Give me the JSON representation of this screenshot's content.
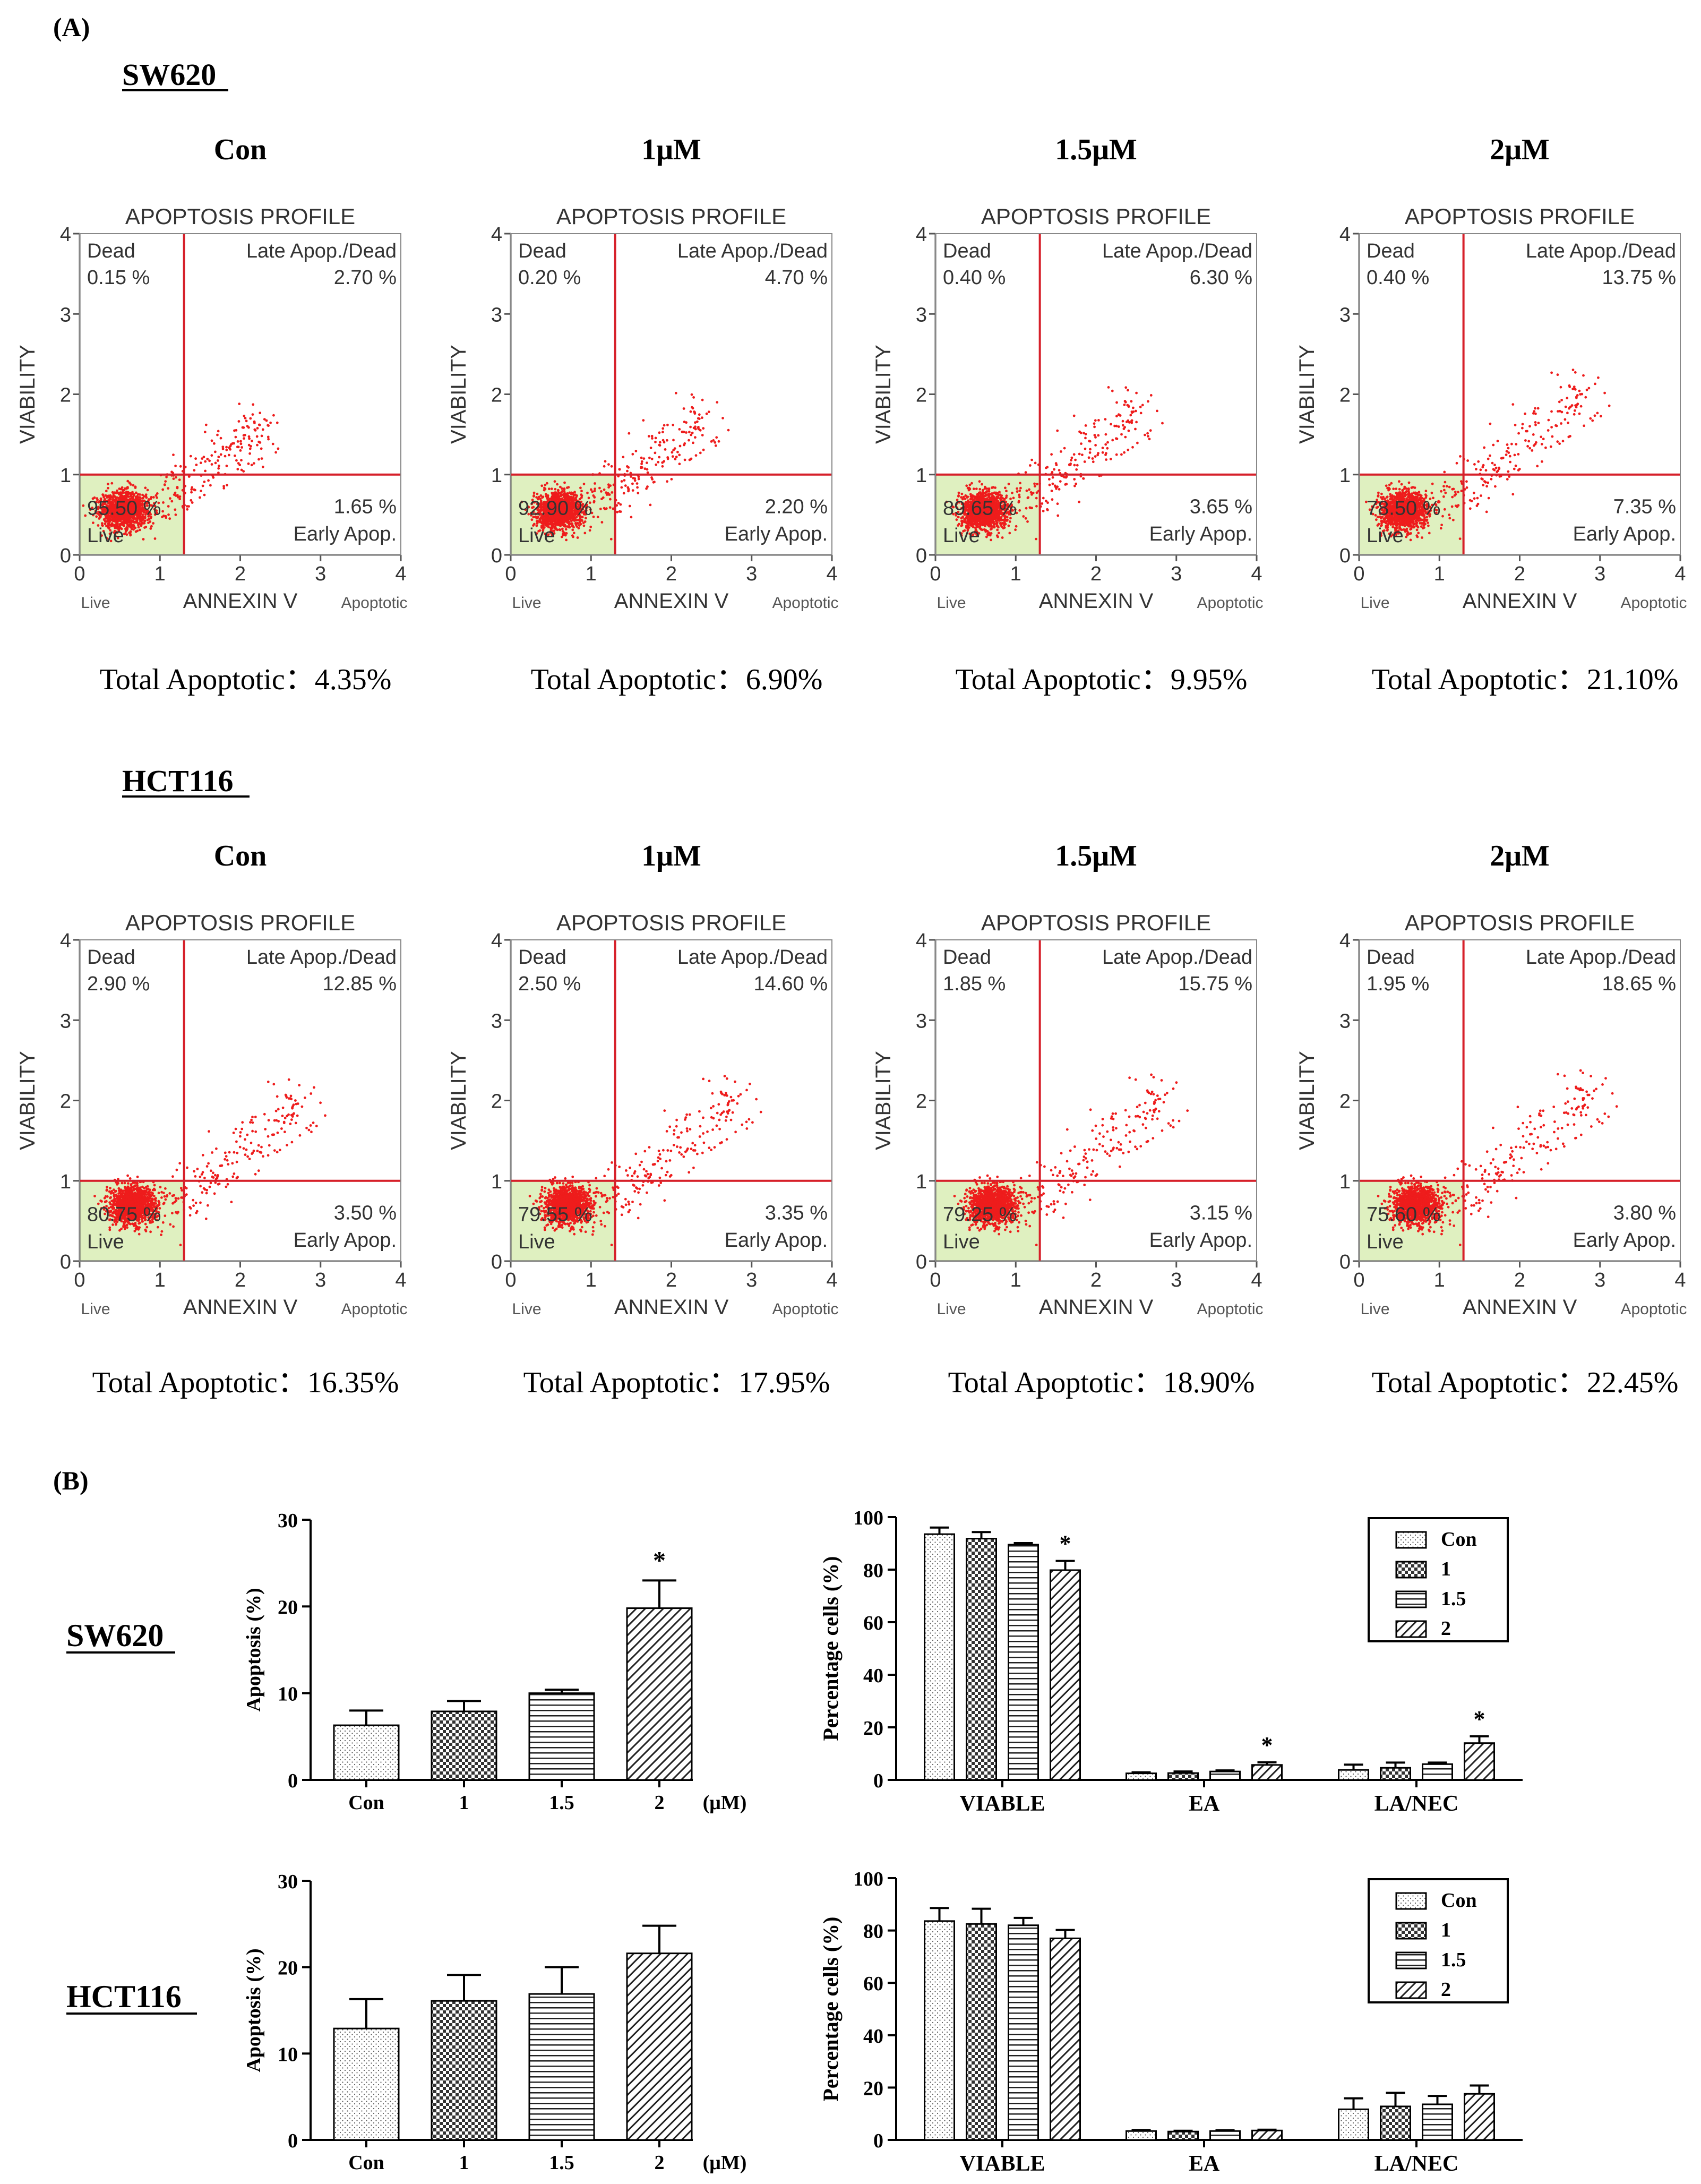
{
  "panel_a_label": "(A)",
  "panel_b_label": "(B)",
  "conc_labels": [
    "Con",
    "1μM",
    "1.5μM",
    "2μM"
  ],
  "total_prefix": "Total Apoptotic：",
  "colors": {
    "scatter_red": "#ee1c1c",
    "quadrant_line": "#d6202a",
    "live_box": "#dff0c0",
    "title_gray": "#404040"
  },
  "chart_data": {
    "flow": [
      {
        "cell_line": "SW620",
        "panels": [
          {
            "condition": "Con",
            "title": "APOPTOSIS PROFILE",
            "ylabel": "VIABILITY",
            "xlabel": "ANNEXIN V",
            "x_left": "Live",
            "x_right": "Apoptotic",
            "dead_label": "Dead",
            "dead": "0.15 %",
            "late_label": "Late Apop./Dead",
            "late": "2.70 %",
            "live": "95.50 %",
            "live_label": "Live",
            "early": "1.65 %",
            "early_label": "Early Apop.",
            "total": "4.35%",
            "spread": 0.15,
            "cluster": [
              0.55,
              0.55
            ],
            "xlim": [
              0,
              4
            ],
            "ylim": [
              0,
              4
            ]
          },
          {
            "condition": "1μM",
            "title": "APOPTOSIS PROFILE",
            "ylabel": "VIABILITY",
            "xlabel": "ANNEXIN V",
            "x_left": "Live",
            "x_right": "Apoptotic",
            "dead_label": "Dead",
            "dead": "0.20 %",
            "late_label": "Late Apop./Dead",
            "late": "4.70 %",
            "live": "92.90 %",
            "live_label": "Live",
            "early": "2.20 %",
            "early_label": "Early Apop.",
            "total": "6.90%",
            "spread": 0.25,
            "cluster": [
              0.6,
              0.55
            ],
            "xlim": [
              0,
              4
            ],
            "ylim": [
              0,
              4
            ]
          },
          {
            "condition": "1.5μM",
            "title": "APOPTOSIS PROFILE",
            "ylabel": "VIABILITY",
            "xlabel": "ANNEXIN V",
            "x_left": "Live",
            "x_right": "Apoptotic",
            "dead_label": "Dead",
            "dead": "0.40 %",
            "late_label": "Late Apop./Dead",
            "late": "6.30 %",
            "live": "89.65 %",
            "live_label": "Live",
            "early": "3.65 %",
            "early_label": "Early Apop.",
            "total": "9.95%",
            "spread": 0.35,
            "cluster": [
              0.6,
              0.55
            ],
            "xlim": [
              0,
              4
            ],
            "ylim": [
              0,
              4
            ]
          },
          {
            "condition": "2μM",
            "title": "APOPTOSIS PROFILE",
            "ylabel": "VIABILITY",
            "xlabel": "ANNEXIN V",
            "x_left": "Live",
            "x_right": "Apoptotic",
            "dead_label": "Dead",
            "dead": "0.40 %",
            "late_label": "Late Apop./Dead",
            "late": "13.75 %",
            "live": "78.50 %",
            "live_label": "Live",
            "early": "7.35 %",
            "early_label": "Early Apop.",
            "total": "21.10%",
            "spread": 0.6,
            "cluster": [
              0.55,
              0.55
            ],
            "xlim": [
              0,
              4
            ],
            "ylim": [
              0,
              4
            ]
          }
        ]
      },
      {
        "cell_line": "HCT116",
        "panels": [
          {
            "condition": "Con",
            "title": "APOPTOSIS PROFILE",
            "ylabel": "VIABILITY",
            "xlabel": "ANNEXIN V",
            "x_left": "Live",
            "x_right": "Apoptotic",
            "dead_label": "Dead",
            "dead": "2.90 %",
            "late_label": "Late Apop./Dead",
            "late": "12.85 %",
            "live": "80.75 %",
            "live_label": "Live",
            "early": "3.50 %",
            "early_label": "Early Apop.",
            "total": "16.35%",
            "spread": 0.55,
            "cluster": [
              0.65,
              0.7
            ],
            "xlim": [
              0,
              4
            ],
            "ylim": [
              0,
              4
            ]
          },
          {
            "condition": "1μM",
            "title": "APOPTOSIS PROFILE",
            "ylabel": "VIABILITY",
            "xlabel": "ANNEXIN V",
            "x_left": "Live",
            "x_right": "Apoptotic",
            "dead_label": "Dead",
            "dead": "2.50 %",
            "late_label": "Late Apop./Dead",
            "late": "14.60 %",
            "live": "79.55 %",
            "live_label": "Live",
            "early": "3.35 %",
            "early_label": "Early Apop.",
            "total": "17.95%",
            "spread": 0.6,
            "cluster": [
              0.7,
              0.7
            ],
            "xlim": [
              0,
              4
            ],
            "ylim": [
              0,
              4
            ]
          },
          {
            "condition": "1.5μM",
            "title": "APOPTOSIS PROFILE",
            "ylabel": "VIABILITY",
            "xlabel": "ANNEXIN V",
            "x_left": "Live",
            "x_right": "Apoptotic",
            "dead_label": "Dead",
            "dead": "1.85 %",
            "late_label": "Late Apop./Dead",
            "late": "15.75 %",
            "live": "79.25 %",
            "live_label": "Live",
            "early": "3.15 %",
            "early_label": "Early Apop.",
            "total": "18.90%",
            "spread": 0.62,
            "cluster": [
              0.7,
              0.7
            ],
            "xlim": [
              0,
              4
            ],
            "ylim": [
              0,
              4
            ]
          },
          {
            "condition": "2μM",
            "title": "APOPTOSIS PROFILE",
            "ylabel": "VIABILITY",
            "xlabel": "ANNEXIN V",
            "x_left": "Live",
            "x_right": "Apoptotic",
            "dead_label": "Dead",
            "dead": "1.95 %",
            "late_label": "Late Apop./Dead",
            "late": "18.65 %",
            "live": "75.60 %",
            "live_label": "Live",
            "early": "3.80 %",
            "early_label": "Early Apop.",
            "total": "22.45%",
            "spread": 0.68,
            "cluster": [
              0.7,
              0.7
            ],
            "xlim": [
              0,
              4
            ],
            "ylim": [
              0,
              4
            ]
          }
        ]
      }
    ],
    "apoptosis_bars": [
      {
        "cell_line": "SW620",
        "type": "bar",
        "ylabel": "Apoptosis (%)",
        "ylim": [
          0,
          30
        ],
        "yticks": [
          0,
          10,
          20,
          30
        ],
        "categories": [
          "Con",
          "1",
          "1.5",
          "2"
        ],
        "unit": "(μM)",
        "values": [
          6.3,
          7.9,
          10.0,
          19.8
        ],
        "errors": [
          1.7,
          1.2,
          0.4,
          3.2
        ],
        "significant": [
          "",
          "",
          "",
          "*"
        ]
      },
      {
        "cell_line": "HCT116",
        "type": "bar",
        "ylabel": "Apoptosis (%)",
        "ylim": [
          0,
          30
        ],
        "yticks": [
          0,
          10,
          20,
          30
        ],
        "categories": [
          "Con",
          "1",
          "1.5",
          "2"
        ],
        "unit": "(μM)",
        "values": [
          12.9,
          16.1,
          16.9,
          21.6
        ],
        "errors": [
          3.4,
          3.0,
          3.1,
          3.2
        ],
        "significant": [
          "",
          "",
          "",
          ""
        ]
      }
    ],
    "grouped_bars": [
      {
        "cell_line": "SW620",
        "type": "bar",
        "ylabel": "Percentage cells (%)",
        "ylim": [
          0,
          100
        ],
        "yticks": [
          0,
          20,
          40,
          60,
          80,
          100
        ],
        "groups": [
          "VIABLE",
          "EA",
          "LA/NEC"
        ],
        "legend": [
          "Con",
          "1",
          "1.5",
          "2"
        ],
        "series": [
          {
            "name": "Con",
            "values": [
              93.5,
              2.5,
              3.8
            ],
            "errors": [
              2.5,
              0.4,
              2.0
            ],
            "significant": [
              "",
              "",
              ""
            ]
          },
          {
            "name": "1",
            "values": [
              91.8,
              2.6,
              4.6
            ],
            "errors": [
              2.5,
              0.6,
              2.0
            ],
            "significant": [
              "",
              "",
              ""
            ]
          },
          {
            "name": "1.5",
            "values": [
              89.5,
              3.2,
              6.0
            ],
            "errors": [
              0.6,
              0.4,
              0.6
            ],
            "significant": [
              "",
              "",
              ""
            ]
          },
          {
            "name": "2",
            "values": [
              79.8,
              5.7,
              14.0
            ],
            "errors": [
              3.5,
              1.0,
              2.6
            ],
            "significant": [
              "*",
              "*",
              "*"
            ]
          }
        ]
      },
      {
        "cell_line": "HCT116",
        "type": "bar",
        "ylabel": "Percentage cells (%)",
        "ylim": [
          0,
          100
        ],
        "yticks": [
          0,
          20,
          40,
          60,
          80,
          100
        ],
        "groups": [
          "VIABLE",
          "EA",
          "LA/NEC"
        ],
        "legend": [
          "Con",
          "1",
          "1.5",
          "2"
        ],
        "series": [
          {
            "name": "Con",
            "values": [
              83.6,
              3.4,
              11.7
            ],
            "errors": [
              5.0,
              0.4,
              4.2
            ],
            "significant": [
              "",
              "",
              ""
            ]
          },
          {
            "name": "1",
            "values": [
              82.5,
              3.2,
              12.8
            ],
            "errors": [
              5.8,
              0.3,
              5.2
            ],
            "significant": [
              "",
              "",
              ""
            ]
          },
          {
            "name": "1.5",
            "values": [
              82.0,
              3.4,
              13.6
            ],
            "errors": [
              2.8,
              0.3,
              3.2
            ],
            "significant": [
              "",
              "",
              ""
            ]
          },
          {
            "name": "2",
            "values": [
              77.0,
              3.6,
              17.6
            ],
            "errors": [
              3.2,
              0.3,
              3.2
            ],
            "significant": [
              "",
              "",
              ""
            ]
          }
        ]
      }
    ]
  }
}
